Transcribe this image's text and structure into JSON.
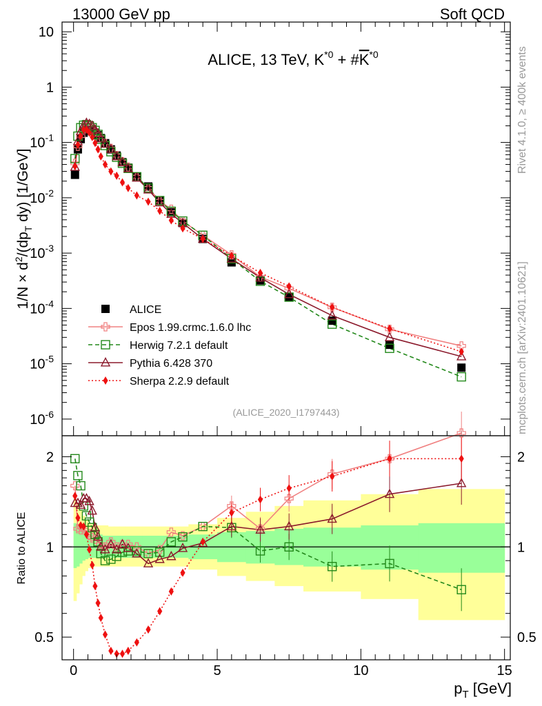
{
  "header": {
    "left": "13000 GeV pp",
    "right": "Soft QCD"
  },
  "side": {
    "rivet": "Rivet 4.1.0, ≥ 400k events",
    "mcplots": "mcplots.cern.ch [arXiv:2401.10621]"
  },
  "chart_data": [
    {
      "type": "scatter",
      "panel": "main",
      "title": "ALICE, 13 TeV, K*0 + K̄*0",
      "title_parts": [
        "ALICE, 13 TeV, K",
        "*0",
        " + #",
        "K",
        "*0"
      ],
      "ylabel": "1/N × d²/(dp_T dy) [1/GeV]",
      "ylabel_parts": [
        "1/N × d",
        "2",
        "/(dp",
        "T",
        " dy) [1/GeV]"
      ],
      "yscale": "log",
      "ylim": [
        5e-07,
        15
      ],
      "xlim": [
        -0.4,
        15.2
      ],
      "y_ticks": [
        {
          "v": 10,
          "m": "10",
          "e": ""
        },
        {
          "v": 1,
          "m": "1",
          "e": ""
        },
        {
          "v": 0.1,
          "m": "10",
          "e": "-1"
        },
        {
          "v": 0.01,
          "m": "10",
          "e": "-2"
        },
        {
          "v": 0.001,
          "m": "10",
          "e": "-3"
        },
        {
          "v": 0.0001,
          "m": "10",
          "e": "-4"
        },
        {
          "v": 1e-05,
          "m": "10",
          "e": "-5"
        },
        {
          "v": 1e-06,
          "m": "10",
          "e": "-6"
        }
      ],
      "watermark": "(ALICE_2020_I1797443)",
      "legend_position": "lower-left",
      "series": [
        {
          "name": "ALICE",
          "color": "#000000",
          "marker": "square-filled",
          "line": "none",
          "x": [
            0.05,
            0.15,
            0.25,
            0.35,
            0.45,
            0.55,
            0.65,
            0.75,
            0.85,
            0.95,
            1.1,
            1.3,
            1.5,
            1.7,
            1.9,
            2.2,
            2.6,
            3.0,
            3.4,
            3.8,
            4.5,
            5.5,
            6.5,
            7.5,
            9.0,
            11.0,
            13.5
          ],
          "y": [
            0.026,
            0.075,
            0.115,
            0.15,
            0.165,
            0.165,
            0.16,
            0.15,
            0.135,
            0.12,
            0.097,
            0.075,
            0.058,
            0.044,
            0.035,
            0.024,
            0.016,
            0.009,
            0.0055,
            0.0035,
            0.0018,
            0.00068,
            0.00032,
            0.00016,
            6e-05,
            2.2e-05,
            8.5e-06
          ]
        },
        {
          "name": "Epos 1.99.crmc.1.6.0 lhc",
          "color": "#f08080",
          "marker": "cross-open",
          "line": "solid",
          "x": [
            0.05,
            0.15,
            0.25,
            0.35,
            0.45,
            0.55,
            0.65,
            0.75,
            0.85,
            0.95,
            1.1,
            1.3,
            1.5,
            1.7,
            1.9,
            2.2,
            2.6,
            3.0,
            3.4,
            3.8,
            4.5,
            5.5,
            6.5,
            7.5,
            9.0,
            11.0,
            13.5
          ],
          "y": [
            0.042,
            0.085,
            0.13,
            0.17,
            0.185,
            0.18,
            0.17,
            0.16,
            0.14,
            0.123,
            0.097,
            0.078,
            0.058,
            0.045,
            0.036,
            0.024,
            0.015,
            0.0088,
            0.0062,
            0.0038,
            0.0021,
            0.00093,
            0.00037,
            0.00023,
            0.000105,
            4.2e-05,
            2.1e-05
          ]
        },
        {
          "name": "Herwig 7.2.1 default",
          "color": "#22881a",
          "marker": "square-open",
          "line": "dashed",
          "x": [
            0.05,
            0.15,
            0.25,
            0.35,
            0.45,
            0.55,
            0.65,
            0.75,
            0.85,
            0.95,
            1.1,
            1.3,
            1.5,
            1.7,
            1.9,
            2.2,
            2.6,
            3.0,
            3.4,
            3.8,
            4.5,
            5.5,
            6.5,
            7.5,
            9.0,
            11.0,
            13.5
          ],
          "y": [
            0.051,
            0.13,
            0.185,
            0.205,
            0.21,
            0.2,
            0.185,
            0.165,
            0.14,
            0.114,
            0.088,
            0.068,
            0.054,
            0.042,
            0.034,
            0.024,
            0.015,
            0.0089,
            0.0057,
            0.0038,
            0.0021,
            0.00079,
            0.00031,
            0.00016,
            5.2e-05,
            1.9e-05,
            5.8e-06
          ]
        },
        {
          "name": "Pythia 6.428 370",
          "color": "#8b1a2c",
          "marker": "triangle-open",
          "line": "solid",
          "x": [
            0.05,
            0.15,
            0.25,
            0.35,
            0.45,
            0.55,
            0.65,
            0.75,
            0.85,
            0.95,
            1.1,
            1.3,
            1.5,
            1.7,
            1.9,
            2.2,
            2.6,
            3.0,
            3.4,
            3.8,
            4.5,
            5.5,
            6.5,
            7.5,
            9.0,
            11.0,
            13.5
          ],
          "y": [
            0.036,
            0.105,
            0.16,
            0.205,
            0.225,
            0.215,
            0.2,
            0.17,
            0.145,
            0.118,
            0.094,
            0.076,
            0.056,
            0.044,
            0.034,
            0.023,
            0.014,
            0.0082,
            0.0051,
            0.0035,
            0.0018,
            0.00079,
            0.00036,
            0.00018,
            7.4e-05,
            3e-05,
            1.35e-05
          ]
        },
        {
          "name": "Sherpa 2.2.9 default",
          "color": "#ee1111",
          "marker": "diamond-filled",
          "line": "dotted",
          "x": [
            0.05,
            0.15,
            0.25,
            0.35,
            0.45,
            0.55,
            0.65,
            0.75,
            0.85,
            0.95,
            1.1,
            1.3,
            1.5,
            1.7,
            1.9,
            2.2,
            2.6,
            3.0,
            3.4,
            3.8,
            4.5,
            5.5,
            6.5,
            7.5,
            9.0,
            11.0,
            13.5
          ],
          "y": [
            0.037,
            0.09,
            0.13,
            0.17,
            0.17,
            0.15,
            0.125,
            0.098,
            0.075,
            0.056,
            0.04,
            0.03,
            0.025,
            0.019,
            0.015,
            0.011,
            0.0085,
            0.0058,
            0.0039,
            0.0028,
            0.0018,
            0.0009,
            0.00044,
            0.00025,
            0.000105,
            4.3e-05,
            1.65e-05
          ]
        }
      ]
    },
    {
      "type": "line",
      "panel": "ratio",
      "ylabel": "Ratio to ALICE",
      "xlabel": "p_T [GeV]",
      "xlabel_parts": [
        "p",
        "T",
        " [GeV]"
      ],
      "yscale": "log",
      "ylim": [
        0.42,
        2.35
      ],
      "xlim": [
        -0.4,
        15.2
      ],
      "x_ticks": [
        0,
        5,
        10,
        15
      ],
      "y_ticks": [
        0.5,
        1,
        2
      ],
      "reference": 1,
      "bands": {
        "edges": [
          0,
          0.1,
          0.2,
          0.3,
          0.4,
          0.5,
          0.6,
          0.7,
          0.8,
          0.9,
          1.0,
          1.2,
          1.4,
          1.6,
          1.8,
          2.0,
          2.4,
          2.8,
          3.2,
          3.6,
          4.0,
          5.0,
          6.0,
          7.0,
          8.0,
          10.0,
          12.0,
          15.0
        ],
        "inner_color": "#99ff99",
        "outer_color": "#ffff99",
        "inner": [
          [
            0.85,
            1.2
          ],
          [
            0.86,
            1.19
          ],
          [
            0.88,
            1.16
          ],
          [
            0.9,
            1.14
          ],
          [
            0.91,
            1.12
          ],
          [
            0.92,
            1.11
          ],
          [
            0.92,
            1.1
          ],
          [
            0.92,
            1.1
          ],
          [
            0.92,
            1.1
          ],
          [
            0.92,
            1.1
          ],
          [
            0.92,
            1.09
          ],
          [
            0.92,
            1.09
          ],
          [
            0.92,
            1.09
          ],
          [
            0.92,
            1.09
          ],
          [
            0.92,
            1.09
          ],
          [
            0.92,
            1.09
          ],
          [
            0.92,
            1.09
          ],
          [
            0.92,
            1.09
          ],
          [
            0.92,
            1.09
          ],
          [
            0.92,
            1.09
          ],
          [
            0.91,
            1.1
          ],
          [
            0.89,
            1.12
          ],
          [
            0.88,
            1.13
          ],
          [
            0.87,
            1.15
          ],
          [
            0.86,
            1.16
          ],
          [
            0.84,
            1.18
          ],
          [
            0.82,
            1.2
          ]
        ],
        "outer": [
          [
            0.66,
            1.45
          ],
          [
            0.7,
            1.4
          ],
          [
            0.75,
            1.33
          ],
          [
            0.8,
            1.27
          ],
          [
            0.83,
            1.23
          ],
          [
            0.85,
            1.2
          ],
          [
            0.85,
            1.19
          ],
          [
            0.86,
            1.19
          ],
          [
            0.86,
            1.18
          ],
          [
            0.86,
            1.18
          ],
          [
            0.86,
            1.18
          ],
          [
            0.86,
            1.17
          ],
          [
            0.86,
            1.17
          ],
          [
            0.86,
            1.17
          ],
          [
            0.86,
            1.17
          ],
          [
            0.86,
            1.17
          ],
          [
            0.86,
            1.17
          ],
          [
            0.86,
            1.17
          ],
          [
            0.86,
            1.17
          ],
          [
            0.86,
            1.17
          ],
          [
            0.84,
            1.19
          ],
          [
            0.8,
            1.25
          ],
          [
            0.77,
            1.31
          ],
          [
            0.74,
            1.37
          ],
          [
            0.71,
            1.43
          ],
          [
            0.67,
            1.5
          ],
          [
            0.57,
            1.56
          ]
        ]
      },
      "series": [
        {
          "name": "Epos 1.99.crmc.1.6.0 lhc",
          "x": [
            0.05,
            0.15,
            0.25,
            0.35,
            0.45,
            0.55,
            0.65,
            0.75,
            0.85,
            0.95,
            1.1,
            1.3,
            1.5,
            1.7,
            1.9,
            2.2,
            2.6,
            3.0,
            3.4,
            3.8,
            4.5,
            5.5,
            6.5,
            7.5,
            9.0,
            11.0,
            13.5
          ],
          "y": [
            1.6,
            1.15,
            1.14,
            1.14,
            1.13,
            1.1,
            1.07,
            1.06,
            1.04,
            1.02,
            1.0,
            1.04,
            1.0,
            1.02,
            1.02,
            1.0,
            0.95,
            0.98,
            1.12,
            1.09,
            1.17,
            1.37,
            1.15,
            1.45,
            1.75,
            1.97,
            2.4
          ]
        },
        {
          "name": "Herwig 7.2.1 default",
          "x": [
            0.05,
            0.15,
            0.25,
            0.35,
            0.45,
            0.55,
            0.65,
            0.75,
            0.85,
            0.95,
            1.1,
            1.3,
            1.5,
            1.7,
            1.9,
            2.2,
            2.6,
            3.0,
            3.4,
            3.8,
            4.5,
            5.5,
            6.5,
            7.5,
            9.0,
            11.0,
            13.5
          ],
          "y": [
            1.97,
            1.73,
            1.6,
            1.37,
            1.27,
            1.21,
            1.16,
            1.1,
            1.04,
            0.95,
            0.9,
            0.91,
            0.93,
            0.96,
            0.97,
            0.97,
            0.95,
            0.96,
            1.04,
            1.08,
            1.17,
            1.16,
            0.97,
            1.0,
            0.86,
            0.88,
            0.72
          ]
        },
        {
          "name": "Pythia 6.428 370",
          "x": [
            0.05,
            0.15,
            0.25,
            0.35,
            0.45,
            0.55,
            0.65,
            0.75,
            0.85,
            0.95,
            1.1,
            1.3,
            1.5,
            1.7,
            1.9,
            2.2,
            2.6,
            3.0,
            3.4,
            3.8,
            4.5,
            5.5,
            6.5,
            7.5,
            9.0,
            11.0,
            13.5
          ],
          "y": [
            1.4,
            1.4,
            1.38,
            1.45,
            1.45,
            1.42,
            1.32,
            1.16,
            1.08,
            1.0,
            0.98,
            1.02,
            0.98,
            1.02,
            0.99,
            0.95,
            0.88,
            0.91,
            0.93,
            0.99,
            1.03,
            1.17,
            1.14,
            1.17,
            1.24,
            1.5,
            1.63
          ]
        },
        {
          "name": "Sherpa 2.2.9 default",
          "x": [
            0.05,
            0.15,
            0.25,
            0.35,
            0.45,
            0.55,
            0.65,
            0.75,
            0.85,
            0.95,
            1.1,
            1.3,
            1.5,
            1.7,
            1.9,
            2.2,
            2.6,
            3.0,
            3.4,
            3.8,
            4.5,
            5.5,
            6.5,
            7.5,
            9.0,
            11.0,
            13.5
          ],
          "y": [
            1.48,
            1.25,
            1.18,
            1.17,
            1.1,
            0.98,
            0.87,
            0.74,
            0.65,
            0.58,
            0.51,
            0.45,
            0.44,
            0.44,
            0.45,
            0.48,
            0.53,
            0.61,
            0.71,
            0.82,
            1.04,
            1.3,
            1.44,
            1.57,
            1.72,
            1.97,
            1.97
          ]
        }
      ]
    }
  ]
}
